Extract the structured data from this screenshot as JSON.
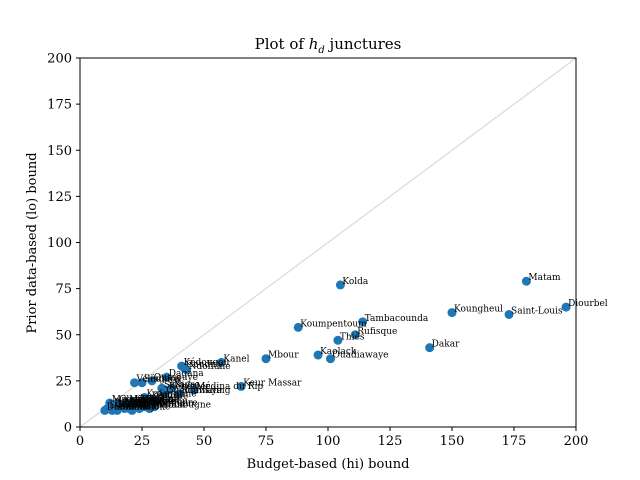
{
  "chart_data": {
    "type": "scatter",
    "title_prefix": "Plot of ",
    "title_symbol": "h",
    "title_subscript": "d",
    "title_suffix": " junctures",
    "xlabel": "Budget-based (hi) bound",
    "ylabel": "Prior data-based (lo) bound",
    "xlim": [
      0,
      200
    ],
    "ylim": [
      0,
      200
    ],
    "xticks": [
      0,
      25,
      50,
      75,
      100,
      125,
      150,
      175,
      200
    ],
    "yticks": [
      0,
      25,
      50,
      75,
      100,
      125,
      150,
      175,
      200
    ],
    "grid": false,
    "diagonal_reference_line": true,
    "colors": {
      "points": "#1f77b4",
      "diagonal": "#d9d9d9",
      "axes": "#000000"
    },
    "points": [
      {
        "label": "Matam",
        "x": 180,
        "y": 79
      },
      {
        "label": "Kolda",
        "x": 105,
        "y": 77
      },
      {
        "label": "Diourbel",
        "x": 196,
        "y": 65
      },
      {
        "label": "Koungheul",
        "x": 150,
        "y": 62
      },
      {
        "label": "Saint-Louis",
        "x": 173,
        "y": 61
      },
      {
        "label": "Tambacounda",
        "x": 114,
        "y": 57
      },
      {
        "label": "Koumpentoum",
        "x": 88,
        "y": 54
      },
      {
        "label": "Rufisque",
        "x": 111,
        "y": 50
      },
      {
        "label": "Thiès",
        "x": 104,
        "y": 47
      },
      {
        "label": "Dakar",
        "x": 141,
        "y": 43
      },
      {
        "label": "Kaolack",
        "x": 96,
        "y": 39
      },
      {
        "label": "Mbour",
        "x": 75,
        "y": 37
      },
      {
        "label": "Ouadiawaye",
        "x": 101,
        "y": 37
      },
      {
        "label": "Kanel",
        "x": 57,
        "y": 35
      },
      {
        "label": "Kédougou",
        "x": 41,
        "y": 33
      },
      {
        "label": "Goudiry",
        "x": 42,
        "y": 32
      },
      {
        "label": "Ndoffane",
        "x": 43,
        "y": 31
      },
      {
        "label": "Dagana",
        "x": 35,
        "y": 27
      },
      {
        "label": "Oussouye",
        "x": 29,
        "y": 25
      },
      {
        "label": "Vélingara",
        "x": 22,
        "y": 24
      },
      {
        "label": "Sédhiou",
        "x": 25,
        "y": 24
      },
      {
        "label": "Keur Massar",
        "x": 65,
        "y": 22
      },
      {
        "label": "Saraya",
        "x": 33,
        "y": 21
      },
      {
        "label": "Nioro",
        "x": 37,
        "y": 21
      },
      {
        "label": "Kébémer",
        "x": 35,
        "y": 20
      },
      {
        "label": "Médina du Rip",
        "x": 46,
        "y": 20
      },
      {
        "label": "Guédiawaye",
        "x": 34,
        "y": 18
      },
      {
        "label": "Bounkiling",
        "x": 40,
        "y": 18
      },
      {
        "label": "Kafountine",
        "x": 26,
        "y": 16
      },
      {
        "label": "Kaffrine",
        "x": 28,
        "y": 15
      },
      {
        "label": "Podor",
        "x": 30,
        "y": 15
      },
      {
        "label": "Malem Hodar",
        "x": 12,
        "y": 13
      },
      {
        "label": "Goudomp",
        "x": 15,
        "y": 13
      },
      {
        "label": "Mékhé",
        "x": 19,
        "y": 13
      },
      {
        "label": "Kounkané",
        "x": 21,
        "y": 13
      },
      {
        "label": "Bignona",
        "x": 24,
        "y": 13
      },
      {
        "label": "Mboro",
        "x": 17,
        "y": 12
      },
      {
        "label": "Thilogne",
        "x": 22,
        "y": 12
      },
      {
        "label": "Ranérou",
        "x": 27,
        "y": 12
      },
      {
        "label": "Diofior",
        "x": 13,
        "y": 11
      },
      {
        "label": "Birkelane",
        "x": 16,
        "y": 11
      },
      {
        "label": "Gossas",
        "x": 19,
        "y": 11
      },
      {
        "label": "Fatick",
        "x": 23,
        "y": 11
      },
      {
        "label": "Tivaouane",
        "x": 26,
        "y": 11
      },
      {
        "label": "Linguère",
        "x": 30,
        "y": 11
      },
      {
        "label": "Louga",
        "x": 11,
        "y": 10
      },
      {
        "label": "Touba",
        "x": 14,
        "y": 10
      },
      {
        "label": "Pout",
        "x": 18,
        "y": 10
      },
      {
        "label": "Joal",
        "x": 20,
        "y": 10
      },
      {
        "label": "Kolda-Est",
        "x": 24,
        "y": 10
      },
      {
        "label": "Foundiougne",
        "x": 28,
        "y": 10
      },
      {
        "label": "Diamniadio",
        "x": 10,
        "y": 9
      },
      {
        "label": "Sokone",
        "x": 13,
        "y": 9
      },
      {
        "label": "Bambey",
        "x": 15,
        "y": 9
      },
      {
        "label": "Mbacké",
        "x": 21,
        "y": 9
      }
    ]
  }
}
